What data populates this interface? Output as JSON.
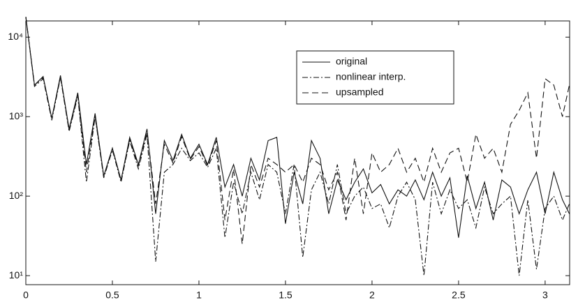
{
  "chart_data": {
    "type": "line",
    "x": [
      0,
      0.05,
      0.1,
      0.15,
      0.2,
      0.25,
      0.3,
      0.35,
      0.4,
      0.45,
      0.5,
      0.55,
      0.6,
      0.65,
      0.7,
      0.75,
      0.8,
      0.85,
      0.9,
      0.95,
      1.0,
      1.05,
      1.1,
      1.15,
      1.2,
      1.25,
      1.3,
      1.35,
      1.4,
      1.45,
      1.5,
      1.55,
      1.6,
      1.65,
      1.7,
      1.75,
      1.8,
      1.85,
      1.9,
      1.95,
      2.0,
      2.05,
      2.1,
      2.15,
      2.2,
      2.25,
      2.3,
      2.35,
      2.4,
      2.45,
      2.5,
      2.55,
      2.6,
      2.65,
      2.7,
      2.75,
      2.8,
      2.85,
      2.9,
      2.95,
      3.0,
      3.05,
      3.1,
      3.14
    ],
    "series": [
      {
        "name": "original",
        "color": "#111111",
        "dash": "solid",
        "values": [
          18000,
          2500,
          3200,
          950,
          3300,
          700,
          2000,
          250,
          1100,
          180,
          400,
          160,
          550,
          250,
          700,
          60,
          500,
          280,
          600,
          300,
          450,
          250,
          550,
          130,
          250,
          100,
          300,
          160,
          500,
          550,
          45,
          200,
          80,
          500,
          300,
          60,
          160,
          90,
          150,
          220,
          110,
          140,
          80,
          120,
          100,
          160,
          90,
          200,
          100,
          170,
          30,
          180,
          70,
          150,
          50,
          160,
          130,
          60,
          120,
          200,
          60,
          200,
          90,
          60
        ]
      },
      {
        "name": "nonlinear interp.",
        "color": "#111111",
        "dash": "dashdot",
        "values": [
          18000,
          2400,
          3000,
          900,
          3100,
          650,
          1800,
          150,
          1000,
          170,
          380,
          150,
          500,
          220,
          600,
          15,
          200,
          250,
          400,
          280,
          350,
          230,
          400,
          30,
          150,
          60,
          200,
          90,
          250,
          200,
          60,
          250,
          17,
          120,
          200,
          80,
          250,
          60,
          100,
          130,
          70,
          80,
          40,
          100,
          150,
          90,
          10,
          150,
          60,
          120,
          70,
          90,
          40,
          130,
          60,
          80,
          100,
          10,
          90,
          12,
          70,
          100,
          50,
          80
        ]
      },
      {
        "name": "upsampled",
        "color": "#111111",
        "dash": "dashed",
        "values": [
          18000,
          2500,
          3100,
          950,
          3200,
          680,
          1900,
          200,
          1050,
          175,
          400,
          155,
          520,
          240,
          650,
          80,
          450,
          260,
          560,
          290,
          420,
          240,
          500,
          50,
          220,
          25,
          250,
          130,
          300,
          250,
          200,
          250,
          150,
          300,
          250,
          120,
          200,
          50,
          300,
          60,
          350,
          200,
          250,
          400,
          200,
          300,
          150,
          400,
          200,
          350,
          400,
          150,
          600,
          300,
          400,
          200,
          800,
          1200,
          2000,
          300,
          3000,
          2500,
          1000,
          2500
        ]
      }
    ],
    "xlim": [
      0,
      3.1416
    ],
    "xticks": [
      0,
      0.5,
      1,
      1.5,
      2,
      2.5,
      3
    ],
    "ylim": [
      7.7,
      16000
    ],
    "yticks": [
      {
        "value": 10,
        "label": "10¹"
      },
      {
        "value": 100,
        "label": "10²"
      },
      {
        "value": 1000,
        "label": "10³"
      },
      {
        "value": 10000,
        "label": "10⁴"
      }
    ],
    "log_y": true,
    "grid": false,
    "legend": "upper right"
  }
}
